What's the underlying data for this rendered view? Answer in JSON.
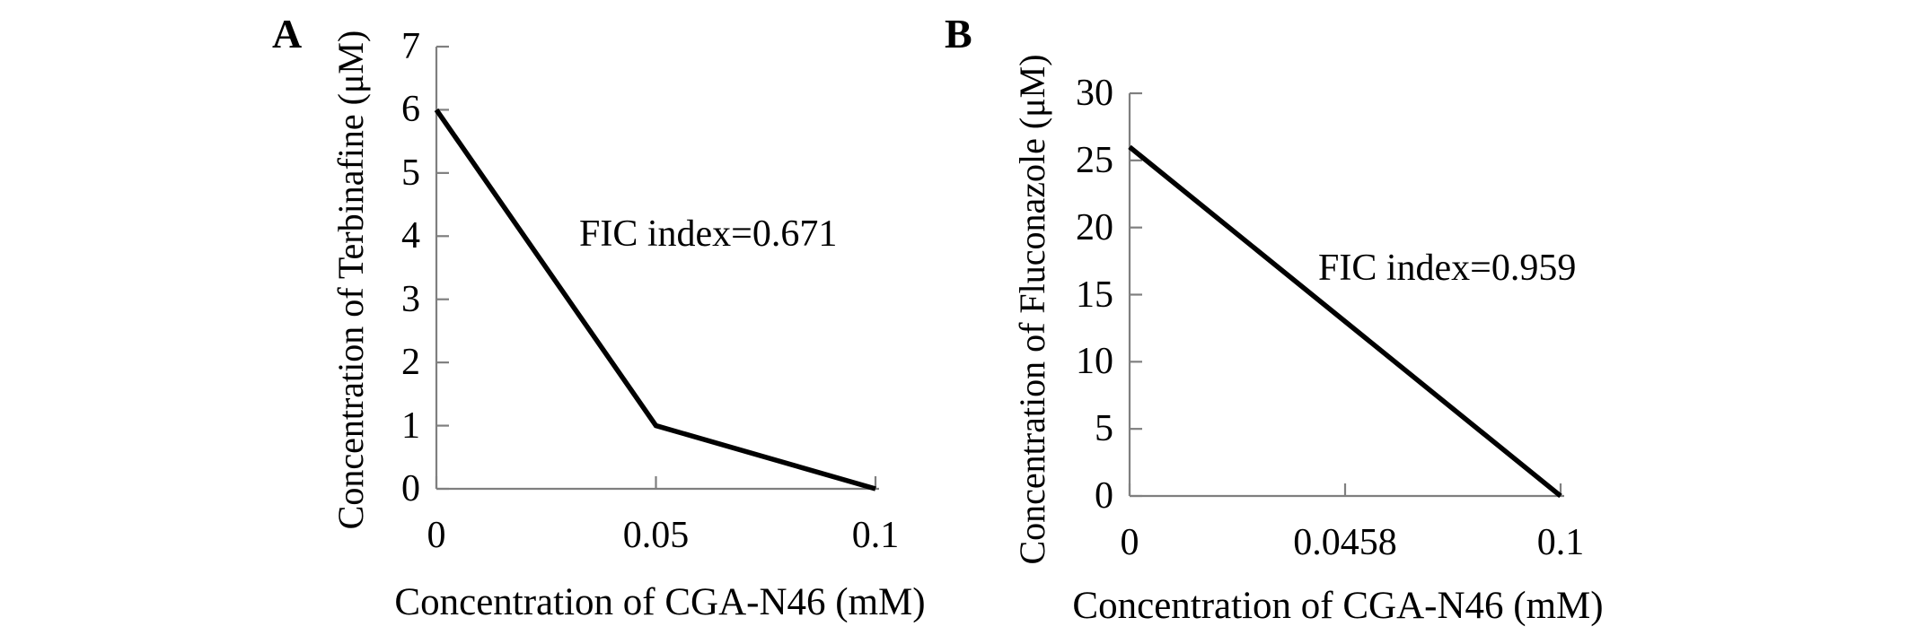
{
  "figure": {
    "background_color": "#ffffff",
    "axis_color": "#7f7f7f",
    "tick_color": "#7f7f7f",
    "data_line_color": "#000000",
    "text_color": "#000000"
  },
  "chart_data": [
    {
      "type": "line",
      "panel_label": "A",
      "xlabel": "Concentration of CGA-N46 (mM)",
      "ylabel": "Concentration of Terbinafine (μM)",
      "annotation": "FIC index=0.671",
      "x_axis_type": "category",
      "x": [
        0,
        0.05,
        0.1
      ],
      "x_tick_labels": [
        "0",
        "0.05",
        "0.1"
      ],
      "values": [
        6,
        1,
        0
      ],
      "ylim": [
        0,
        7
      ],
      "y_ticks": [
        7,
        6,
        5,
        4,
        3,
        2,
        1,
        0
      ],
      "grid": false,
      "legend": false,
      "markers": false
    },
    {
      "type": "line",
      "panel_label": "B",
      "xlabel": "Concentration of CGA-N46 (mM)",
      "ylabel": "Concentration of Fluconazole (μM)",
      "annotation": "FIC index=0.959",
      "x_axis_type": "category",
      "x": [
        0,
        0.0458,
        0.1
      ],
      "x_tick_labels": [
        "0",
        "0.0458",
        "0.1"
      ],
      "values": [
        26,
        13,
        0
      ],
      "ylim": [
        0,
        30
      ],
      "y_ticks": [
        30,
        25,
        20,
        15,
        10,
        5,
        0
      ],
      "grid": false,
      "legend": false,
      "markers": false
    }
  ]
}
